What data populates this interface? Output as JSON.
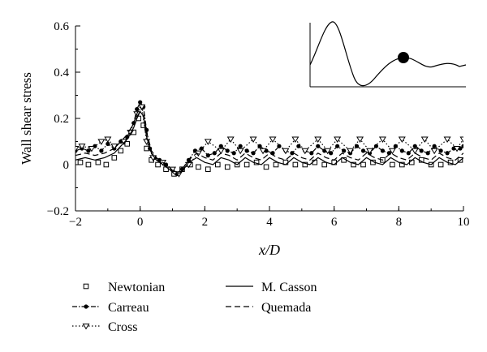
{
  "chart_data": {
    "type": "line",
    "xlabel": "x/D",
    "ylabel": "Wall shear stress",
    "xlim": [
      -2,
      10
    ],
    "ylim": [
      -0.2,
      0.6
    ],
    "xticks": [
      "-2",
      "0",
      "2",
      "4",
      "6",
      "8",
      "10"
    ],
    "yticks": [
      "-0.2",
      "0",
      "0.2",
      "0.4",
      "0.6"
    ],
    "grid": false,
    "legend_position": "bottom",
    "series": [
      {
        "name": "Newtonian",
        "style": "markers-square",
        "x": [
          -1.85,
          -1.6,
          -1.3,
          -1.05,
          -0.8,
          -0.6,
          -0.4,
          -0.2,
          -0.05,
          0.1,
          0.2,
          0.35,
          0.55,
          0.8,
          1.05,
          1.3,
          1.55,
          1.8,
          2.1,
          2.4,
          2.7,
          3.0,
          3.3,
          3.6,
          3.9,
          4.2,
          4.5,
          4.8,
          5.1,
          5.4,
          5.7,
          6.0,
          6.3,
          6.6,
          6.9,
          7.2,
          7.5,
          7.8,
          8.1,
          8.4,
          8.7,
          9.0,
          9.3,
          9.6,
          9.9
        ],
        "y": [
          0.01,
          0.0,
          0.01,
          0.0,
          0.03,
          0.06,
          0.09,
          0.14,
          0.2,
          0.17,
          0.07,
          0.02,
          0.0,
          -0.02,
          -0.04,
          -0.02,
          0.0,
          -0.01,
          -0.02,
          0.0,
          -0.01,
          0.0,
          0.0,
          0.01,
          -0.01,
          0.0,
          0.01,
          0.0,
          0.0,
          0.01,
          0.0,
          0.01,
          0.02,
          0.0,
          0.0,
          0.01,
          0.02,
          0.0,
          0.0,
          0.01,
          0.02,
          0.0,
          0.0,
          0.01,
          0.02
        ]
      },
      {
        "name": "Carreau",
        "style": "dash-dot-circle",
        "x": [
          -2.0,
          -1.8,
          -1.6,
          -1.4,
          -1.2,
          -1.0,
          -0.8,
          -0.6,
          -0.4,
          -0.2,
          -0.1,
          0.0,
          0.1,
          0.2,
          0.3,
          0.45,
          0.6,
          0.8,
          1.0,
          1.15,
          1.3,
          1.5,
          1.7,
          1.9,
          2.1,
          2.3,
          2.5,
          2.7,
          2.9,
          3.1,
          3.3,
          3.5,
          3.7,
          3.9,
          4.1,
          4.3,
          4.5,
          4.7,
          4.9,
          5.1,
          5.3,
          5.5,
          5.7,
          5.9,
          6.1,
          6.3,
          6.5,
          6.7,
          6.9,
          7.1,
          7.3,
          7.5,
          7.7,
          7.9,
          8.1,
          8.3,
          8.5,
          8.7,
          8.9,
          9.1,
          9.3,
          9.5,
          9.7,
          9.9,
          10.0
        ],
        "y": [
          0.06,
          0.07,
          0.06,
          0.08,
          0.06,
          0.09,
          0.07,
          0.1,
          0.12,
          0.18,
          0.24,
          0.27,
          0.25,
          0.15,
          0.07,
          0.03,
          0.02,
          0.0,
          -0.02,
          -0.04,
          -0.02,
          0.02,
          0.06,
          0.07,
          0.04,
          0.05,
          0.08,
          0.06,
          0.05,
          0.08,
          0.06,
          0.05,
          0.08,
          0.06,
          0.05,
          0.08,
          0.06,
          0.05,
          0.08,
          0.06,
          0.05,
          0.08,
          0.06,
          0.05,
          0.08,
          0.06,
          0.05,
          0.08,
          0.06,
          0.05,
          0.08,
          0.06,
          0.05,
          0.08,
          0.06,
          0.05,
          0.08,
          0.06,
          0.05,
          0.08,
          0.06,
          0.05,
          0.07,
          0.07,
          0.08
        ]
      },
      {
        "name": "Cross",
        "style": "dotted-triangle",
        "x": [
          -2.0,
          -1.8,
          -1.5,
          -1.2,
          -1.0,
          -0.8,
          -0.5,
          -0.3,
          -0.1,
          0.05,
          0.2,
          0.4,
          0.7,
          1.0,
          1.2,
          1.5,
          1.8,
          2.1,
          2.5,
          2.8,
          3.1,
          3.5,
          3.8,
          4.1,
          4.5,
          4.8,
          5.1,
          5.5,
          5.8,
          6.1,
          6.5,
          6.8,
          7.1,
          7.5,
          7.8,
          8.1,
          8.5,
          8.8,
          9.1,
          9.5,
          9.8,
          10.0
        ],
        "y": [
          0.07,
          0.08,
          0.07,
          0.1,
          0.11,
          0.08,
          0.1,
          0.14,
          0.22,
          0.25,
          0.1,
          0.03,
          0.01,
          -0.02,
          -0.04,
          0.0,
          0.05,
          0.1,
          0.06,
          0.11,
          0.06,
          0.11,
          0.06,
          0.11,
          0.06,
          0.11,
          0.06,
          0.11,
          0.06,
          0.11,
          0.06,
          0.11,
          0.06,
          0.11,
          0.06,
          0.11,
          0.06,
          0.11,
          0.06,
          0.11,
          0.07,
          0.11
        ]
      },
      {
        "name": "M. Casson",
        "style": "solid",
        "x": [
          -2.0,
          -1.7,
          -1.4,
          -1.1,
          -0.8,
          -0.6,
          -0.4,
          -0.2,
          -0.1,
          0.0,
          0.1,
          0.2,
          0.35,
          0.5,
          0.7,
          0.9,
          1.1,
          1.3,
          1.5,
          1.75,
          2.0,
          2.25,
          2.5,
          2.75,
          3.0,
          3.25,
          3.5,
          3.75,
          4.0,
          4.25,
          4.5,
          4.75,
          5.0,
          5.25,
          5.5,
          5.75,
          6.0,
          6.25,
          6.5,
          6.75,
          7.0,
          7.25,
          7.5,
          7.75,
          8.0,
          8.25,
          8.5,
          8.75,
          9.0,
          9.25,
          9.5,
          9.75,
          10.0
        ],
        "y": [
          0.02,
          0.03,
          0.02,
          0.03,
          0.05,
          0.08,
          0.11,
          0.16,
          0.2,
          0.23,
          0.21,
          0.12,
          0.05,
          0.02,
          0.0,
          -0.02,
          -0.045,
          -0.03,
          0.01,
          0.03,
          0.01,
          0.0,
          0.03,
          0.02,
          0.0,
          0.03,
          0.01,
          0.0,
          0.03,
          0.01,
          0.0,
          0.03,
          0.01,
          0.0,
          0.03,
          0.01,
          0.0,
          0.03,
          0.01,
          0.0,
          0.03,
          0.01,
          0.0,
          0.03,
          0.01,
          0.0,
          0.03,
          0.01,
          0.0,
          0.03,
          0.01,
          0.0,
          0.03
        ]
      },
      {
        "name": "Quemada",
        "style": "dashed",
        "x": [
          -2.0,
          -1.7,
          -1.4,
          -1.1,
          -0.8,
          -0.6,
          -0.4,
          -0.2,
          -0.1,
          0.0,
          0.1,
          0.2,
          0.35,
          0.5,
          0.7,
          0.9,
          1.1,
          1.3,
          1.5,
          1.75,
          2.0,
          2.25,
          2.5,
          2.75,
          3.0,
          3.25,
          3.5,
          3.75,
          4.0,
          4.25,
          4.5,
          4.75,
          5.0,
          5.25,
          5.5,
          5.75,
          6.0,
          6.25,
          6.5,
          6.75,
          7.0,
          7.25,
          7.5,
          7.75,
          8.0,
          8.25,
          8.5,
          8.75,
          9.0,
          9.25,
          9.5,
          9.75,
          10.0
        ],
        "y": [
          0.04,
          0.05,
          0.04,
          0.05,
          0.07,
          0.1,
          0.13,
          0.18,
          0.22,
          0.25,
          0.23,
          0.14,
          0.06,
          0.03,
          0.01,
          -0.01,
          -0.04,
          -0.02,
          0.02,
          0.05,
          0.03,
          0.02,
          0.05,
          0.04,
          0.02,
          0.05,
          0.03,
          0.02,
          0.05,
          0.03,
          0.02,
          0.05,
          0.03,
          0.02,
          0.05,
          0.03,
          0.02,
          0.05,
          0.03,
          0.02,
          0.05,
          0.03,
          0.02,
          0.05,
          0.03,
          0.02,
          0.05,
          0.03,
          0.02,
          0.05,
          0.03,
          0.02,
          0.05
        ]
      }
    ]
  }
}
